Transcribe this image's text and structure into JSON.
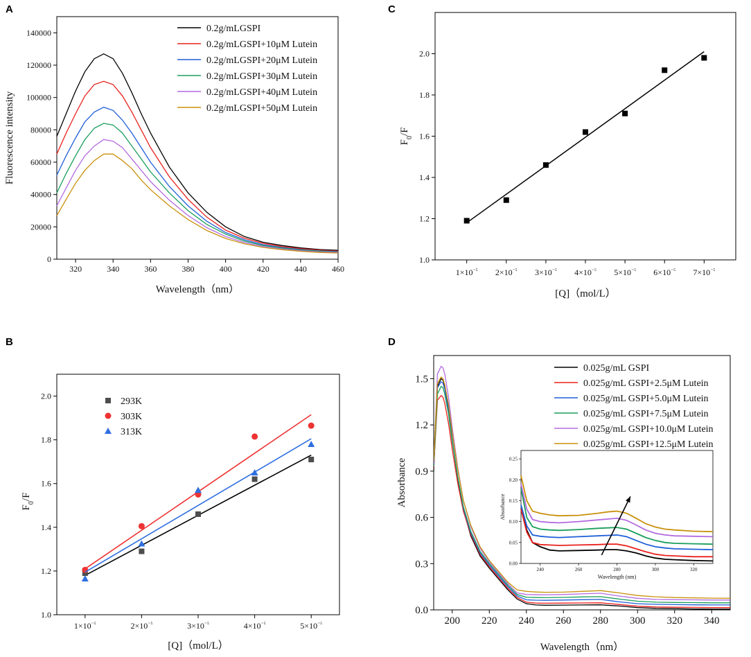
{
  "chart_data": [
    {
      "panel": "A",
      "type": "line",
      "xlabel": "Wavelength（nm）",
      "ylabel": "Fluorescence intensity",
      "xlim": [
        310,
        460
      ],
      "ylim": [
        0,
        150000
      ],
      "xticks": [
        320,
        340,
        360,
        380,
        400,
        420,
        440,
        460
      ],
      "yticks": [
        0,
        20000,
        40000,
        60000,
        80000,
        100000,
        120000,
        140000
      ],
      "legend_position": "top-right",
      "x": [
        310,
        315,
        320,
        325,
        330,
        335,
        340,
        345,
        350,
        355,
        360,
        370,
        380,
        390,
        400,
        410,
        420,
        430,
        440,
        450,
        460
      ],
      "series": [
        {
          "name": "0.2g/mLGSPI",
          "color": "#000000",
          "values": [
            76000,
            90000,
            104000,
            116000,
            124000,
            127000,
            124000,
            115000,
            103000,
            90000,
            78000,
            57000,
            41000,
            29000,
            20000,
            14000,
            10500,
            8500,
            7000,
            6000,
            5500
          ]
        },
        {
          "name": "0.2g/mLGSPI+10μM Lutein",
          "color": "#e8201c",
          "values": [
            65000,
            78000,
            90000,
            101000,
            108000,
            110000,
            108000,
            101000,
            91000,
            80000,
            69000,
            51000,
            37000,
            26000,
            18000,
            13000,
            9800,
            7800,
            6500,
            5600,
            5000
          ]
        },
        {
          "name": "0.2g/mLGSPI+20μM Lutein",
          "color": "#1f5fd8",
          "values": [
            52000,
            64000,
            75000,
            85000,
            91000,
            94000,
            92000,
            86000,
            78000,
            69000,
            60000,
            45000,
            33000,
            23500,
            16500,
            12000,
            9000,
            7200,
            6000,
            5200,
            4700
          ]
        },
        {
          "name": "0.2g/mLGSPI+30μM Lutein",
          "color": "#1a9e5b",
          "values": [
            41000,
            53000,
            64000,
            74000,
            81000,
            84000,
            83000,
            78000,
            70000,
            62000,
            54000,
            41000,
            30000,
            21500,
            15500,
            11200,
            8500,
            6900,
            5700,
            5000,
            4500
          ]
        },
        {
          "name": "0.2g/mLGSPI+40μM Lutein",
          "color": "#b36ae0",
          "values": [
            33000,
            44000,
            55000,
            64000,
            70000,
            74000,
            73000,
            69000,
            62000,
            55000,
            48000,
            36500,
            27000,
            19500,
            14000,
            10300,
            7900,
            6400,
            5300,
            4600,
            4200
          ]
        },
        {
          "name": "0.2g/mLGSPI+50μM Lutein",
          "color": "#c8900a",
          "values": [
            27000,
            37000,
            47000,
            55000,
            61000,
            65000,
            65000,
            61000,
            56000,
            49000,
            43000,
            33000,
            24500,
            17800,
            12800,
            9500,
            7300,
            5900,
            4900,
            4200,
            3800
          ]
        }
      ]
    },
    {
      "panel": "B",
      "type": "scatter",
      "xlabel": "[Q]（mol/L）",
      "ylabel": "F0/F",
      "xlim": [
        0.5,
        5.5
      ],
      "ylim": [
        1.0,
        2.1
      ],
      "xticks": [
        1,
        2,
        3,
        4,
        5
      ],
      "xticklabels": [
        "1×10⁻⁵",
        "2×10⁻⁵",
        "3×10⁻⁵",
        "4×10⁻⁵",
        "5×10⁻⁵"
      ],
      "yticks": [
        1.0,
        1.2,
        1.4,
        1.6,
        1.8,
        2.0
      ],
      "legend_position": "top-left",
      "series": [
        {
          "name": "293K",
          "color": "#4d4d4d",
          "marker": "square",
          "x": [
            1,
            2,
            3,
            4,
            5
          ],
          "y": [
            1.19,
            1.29,
            1.46,
            1.62,
            1.71
          ],
          "fit": [
            [
              1,
              1.18
            ],
            [
              5,
              1.73
            ]
          ]
        },
        {
          "name": "303K",
          "color": "#ee3333",
          "marker": "circle",
          "x": [
            1,
            2,
            3,
            4,
            5
          ],
          "y": [
            1.205,
            1.405,
            1.55,
            1.815,
            1.865
          ],
          "fit": [
            [
              1,
              1.21
            ],
            [
              5,
              1.915
            ]
          ]
        },
        {
          "name": "313K",
          "color": "#2f6fe0",
          "marker": "triangle",
          "x": [
            1,
            2,
            3,
            4,
            5
          ],
          "y": [
            1.165,
            1.325,
            1.57,
            1.65,
            1.78
          ],
          "fit": [
            [
              1,
              1.195
            ],
            [
              5,
              1.805
            ]
          ]
        }
      ]
    },
    {
      "panel": "C",
      "type": "scatter",
      "xlabel": "[Q]（mol/L）",
      "ylabel": "F0/F",
      "xlim": [
        0.2,
        7.8
      ],
      "ylim": [
        1.0,
        2.2
      ],
      "xticks": [
        1,
        2,
        3,
        4,
        5,
        6,
        7
      ],
      "xticklabels": [
        "1×10⁻⁵",
        "2×10⁻⁵",
        "3×10⁻⁵",
        "4×10⁻⁵",
        "5×10⁻⁵",
        "6×10⁻⁵",
        "7×10⁻⁵"
      ],
      "yticks": [
        1.0,
        1.2,
        1.4,
        1.6,
        1.8,
        2.0
      ],
      "series": [
        {
          "name": "F0/F",
          "color": "#000000",
          "marker": "square",
          "x": [
            1,
            2,
            3,
            4,
            5,
            6,
            7
          ],
          "y": [
            1.19,
            1.29,
            1.46,
            1.62,
            1.71,
            1.92,
            1.98
          ],
          "fit": [
            [
              1,
              1.18
            ],
            [
              7,
              2.01
            ]
          ]
        }
      ]
    },
    {
      "panel": "D",
      "type": "line",
      "xlabel": "Wavelength（nm）",
      "ylabel": "Absorbance",
      "xlim": [
        190,
        350
      ],
      "ylim": [
        0,
        1.65
      ],
      "xticks": [
        200,
        220,
        240,
        260,
        280,
        300,
        320,
        340
      ],
      "yticks": [
        0.0,
        0.3,
        0.6,
        0.9,
        1.2,
        1.5
      ],
      "legend_position": "top-right",
      "x": [
        190,
        192,
        194,
        195,
        196,
        198,
        200,
        203,
        206,
        210,
        215,
        220,
        225,
        230,
        235,
        240,
        245,
        250,
        260,
        270,
        280,
        290,
        300,
        310,
        320,
        330,
        340,
        350
      ],
      "series": [
        {
          "name": "0.025g/mL GSPI",
          "color": "#000000",
          "values": [
            0.9,
            1.45,
            1.5,
            1.49,
            1.45,
            1.3,
            1.1,
            0.85,
            0.65,
            0.48,
            0.35,
            0.27,
            0.2,
            0.13,
            0.07,
            0.04,
            0.032,
            0.03,
            0.031,
            0.032,
            0.033,
            0.025,
            0.015,
            0.01,
            0.008,
            0.006,
            0.005,
            0.005
          ]
        },
        {
          "name": "0.025g/mL GSPI+2.5μM Lutein",
          "color": "#e8201c",
          "values": [
            0.92,
            1.36,
            1.39,
            1.38,
            1.34,
            1.21,
            1.04,
            0.82,
            0.64,
            0.49,
            0.36,
            0.28,
            0.21,
            0.14,
            0.08,
            0.05,
            0.044,
            0.043,
            0.044,
            0.045,
            0.046,
            0.035,
            0.024,
            0.019,
            0.017,
            0.016,
            0.015,
            0.015
          ]
        },
        {
          "name": "0.025g/mL GSPI+5.0μM Lutein",
          "color": "#1f5fd8",
          "values": [
            0.93,
            1.44,
            1.48,
            1.47,
            1.43,
            1.29,
            1.1,
            0.86,
            0.66,
            0.5,
            0.37,
            0.29,
            0.22,
            0.15,
            0.09,
            0.065,
            0.063,
            0.062,
            0.064,
            0.066,
            0.068,
            0.052,
            0.04,
            0.036,
            0.034,
            0.033,
            0.032,
            0.032
          ]
        },
        {
          "name": "0.025g/mL GSPI+7.5μM Lutein",
          "color": "#1a9e5b",
          "values": [
            0.93,
            1.4,
            1.45,
            1.44,
            1.4,
            1.27,
            1.09,
            0.86,
            0.67,
            0.51,
            0.38,
            0.3,
            0.23,
            0.16,
            0.1,
            0.082,
            0.08,
            0.079,
            0.081,
            0.084,
            0.086,
            0.07,
            0.056,
            0.05,
            0.048,
            0.047,
            0.046,
            0.046
          ]
        },
        {
          "name": "0.025g/mL GSPI+10.0μM Lutein",
          "color": "#b36ae0",
          "values": [
            0.95,
            1.53,
            1.58,
            1.57,
            1.53,
            1.38,
            1.18,
            0.92,
            0.71,
            0.54,
            0.4,
            0.31,
            0.24,
            0.17,
            0.11,
            0.1,
            0.098,
            0.097,
            0.1,
            0.104,
            0.108,
            0.09,
            0.075,
            0.068,
            0.066,
            0.065,
            0.064,
            0.064
          ]
        },
        {
          "name": "0.025g/mL GSPI+12.5μM Lutein",
          "color": "#c8900a",
          "values": [
            0.97,
            1.47,
            1.51,
            1.5,
            1.46,
            1.33,
            1.15,
            0.91,
            0.71,
            0.55,
            0.41,
            0.32,
            0.25,
            0.18,
            0.13,
            0.12,
            0.116,
            0.114,
            0.115,
            0.12,
            0.125,
            0.11,
            0.093,
            0.085,
            0.08,
            0.078,
            0.076,
            0.075
          ]
        }
      ],
      "inset": {
        "xlabel": "Wavelength (nm)",
        "ylabel": "Absorbance",
        "xlim": [
          230,
          330
        ],
        "ylim": [
          0,
          0.27
        ],
        "xticks": [
          240,
          260,
          280,
          300,
          320
        ],
        "yticks": [
          0.0,
          0.05,
          0.1,
          0.15,
          0.2,
          0.25
        ],
        "yticklabels": [
          "0.00",
          "0.05",
          "0.10",
          "0.15",
          "0.20",
          "0.25"
        ],
        "x": [
          230,
          233,
          236,
          240,
          245,
          250,
          260,
          270,
          275,
          280,
          285,
          290,
          295,
          300,
          305,
          310,
          320,
          330
        ],
        "series": [
          {
            "name": "0.025g/mL GSPI",
            "color": "#000000",
            "values": [
              0.13,
              0.08,
              0.05,
              0.04,
              0.032,
              0.03,
              0.031,
              0.032,
              0.033,
              0.033,
              0.03,
              0.025,
              0.018,
              0.013,
              0.01,
              0.009,
              0.007,
              0.006
            ]
          },
          {
            "name": "0.025g/mL GSPI+2.5μM Lutein",
            "color": "#e8201c",
            "values": [
              0.13,
              0.075,
              0.05,
              0.045,
              0.044,
              0.043,
              0.044,
              0.045,
              0.046,
              0.046,
              0.042,
              0.035,
              0.028,
              0.022,
              0.019,
              0.018,
              0.016,
              0.016
            ]
          },
          {
            "name": "0.025g/mL GSPI+5.0μM Lutein",
            "color": "#1f5fd8",
            "values": [
              0.14,
              0.09,
              0.068,
              0.065,
              0.063,
              0.062,
              0.064,
              0.066,
              0.067,
              0.068,
              0.064,
              0.055,
              0.046,
              0.04,
              0.037,
              0.035,
              0.034,
              0.033
            ]
          },
          {
            "name": "0.025g/mL GSPI+7.5μM Lutein",
            "color": "#1a9e5b",
            "values": [
              0.18,
              0.11,
              0.088,
              0.082,
              0.08,
              0.079,
              0.081,
              0.084,
              0.085,
              0.086,
              0.082,
              0.072,
              0.062,
              0.055,
              0.05,
              0.048,
              0.047,
              0.046
            ]
          },
          {
            "name": "0.025g/mL GSPI+10.0μM Lutein",
            "color": "#b36ae0",
            "values": [
              0.19,
              0.13,
              0.105,
              0.1,
              0.098,
              0.097,
              0.1,
              0.104,
              0.106,
              0.108,
              0.103,
              0.092,
              0.08,
              0.072,
              0.068,
              0.066,
              0.065,
              0.064
            ]
          },
          {
            "name": "0.025g/mL GSPI+12.5μM Lutein",
            "color": "#c8900a",
            "values": [
              0.21,
              0.15,
              0.125,
              0.12,
              0.116,
              0.114,
              0.115,
              0.12,
              0.123,
              0.125,
              0.12,
              0.108,
              0.095,
              0.087,
              0.082,
              0.08,
              0.077,
              0.076
            ]
          }
        ],
        "arrow": {
          "from": [
            272,
            0.02
          ],
          "to": [
            287,
            0.16
          ]
        }
      }
    }
  ]
}
